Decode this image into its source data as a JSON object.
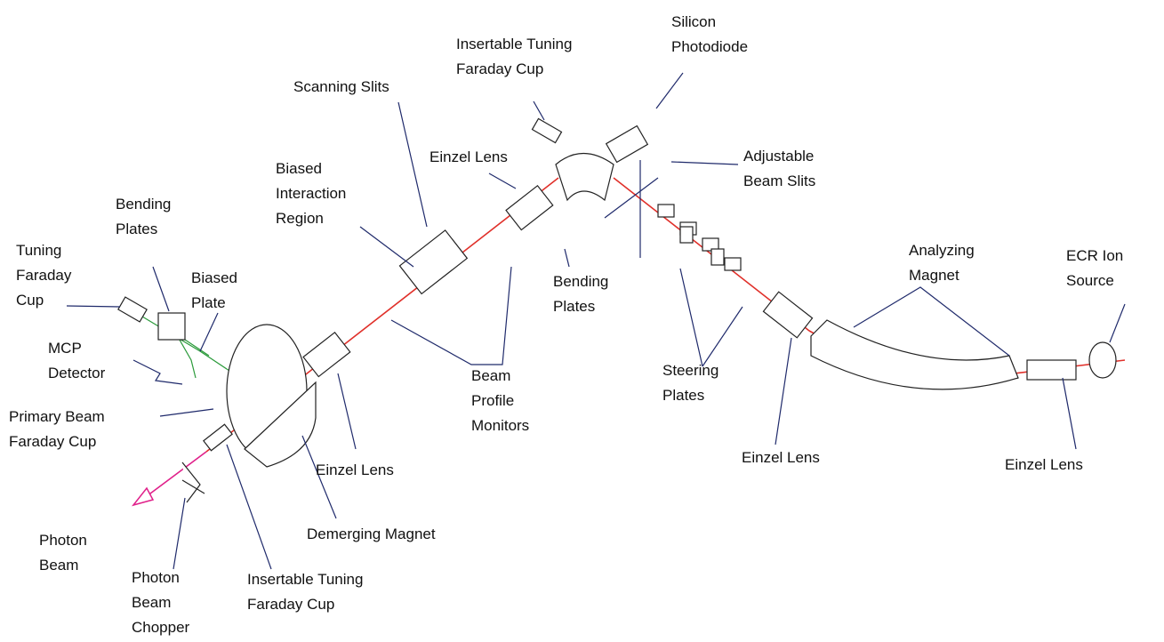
{
  "labels": [
    {
      "lines": [
        "Silicon",
        "Photodiode"
      ]
    },
    {
      "lines": [
        "Insertable Tuning",
        "Faraday Cup"
      ]
    },
    {
      "lines": [
        "Scanning Slits"
      ]
    },
    {
      "lines": [
        "Einzel Lens"
      ]
    },
    {
      "lines": [
        "Adjustable",
        "Beam Slits"
      ]
    },
    {
      "lines": [
        "Biased",
        "Interaction",
        "Region"
      ]
    },
    {
      "lines": [
        "Bending",
        "Plates"
      ]
    },
    {
      "lines": [
        "Tuning",
        "Faraday",
        "Cup"
      ]
    },
    {
      "lines": [
        "Biased",
        "Plate"
      ]
    },
    {
      "lines": [
        "Bending",
        "Plates"
      ]
    },
    {
      "lines": [
        "Analyzing",
        "Magnet"
      ]
    },
    {
      "lines": [
        "ECR Ion",
        "Source"
      ]
    },
    {
      "lines": [
        "MCP",
        "Detector"
      ]
    },
    {
      "lines": [
        "Beam",
        "Profile",
        "Monitors"
      ]
    },
    {
      "lines": [
        "Steering",
        "Plates"
      ]
    },
    {
      "lines": [
        "Primary Beam",
        "Faraday Cup"
      ]
    },
    {
      "lines": [
        "Einzel Lens"
      ]
    },
    {
      "lines": [
        "Einzel Lens"
      ]
    },
    {
      "lines": [
        "Einzel Lens"
      ]
    },
    {
      "lines": [
        "Demerging Magnet"
      ]
    },
    {
      "lines": [
        "Photon",
        "Beam"
      ]
    },
    {
      "lines": [
        "Photon",
        "Beam",
        "Chopper"
      ]
    },
    {
      "lines": [
        "Insertable Tuning",
        "Faraday Cup"
      ]
    }
  ]
}
